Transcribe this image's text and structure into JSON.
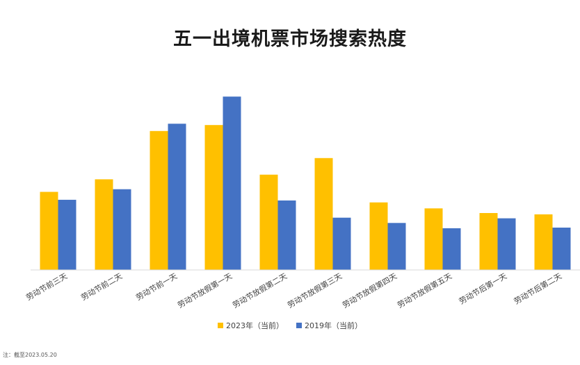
{
  "chart_data": {
    "type": "bar",
    "title": "五一出境机票市场搜索热度",
    "categories": [
      "劳动节前三天",
      "劳动节前二天",
      "劳动节前一天",
      "劳动节放假第一天",
      "劳动节放假第二天",
      "劳动节放假第三天",
      "劳动节放假第四天",
      "劳动节放假第五天",
      "劳动节后第一天",
      "劳动节后第二天"
    ],
    "series": [
      {
        "name": "2023年（当前）",
        "color": "#FFC000",
        "values": [
          118,
          137,
          210,
          219,
          144,
          169,
          102,
          93,
          86,
          84
        ]
      },
      {
        "name": "2019年（当前）",
        "color": "#4472C4",
        "values": [
          106,
          122,
          221,
          262,
          105,
          79,
          71,
          63,
          78,
          64
        ]
      }
    ],
    "ylim": [
      0,
      280
    ],
    "grid": false,
    "legend_position": "bottom",
    "xlabel": "",
    "ylabel": ""
  },
  "footnote": "注：截至2023.05.20"
}
